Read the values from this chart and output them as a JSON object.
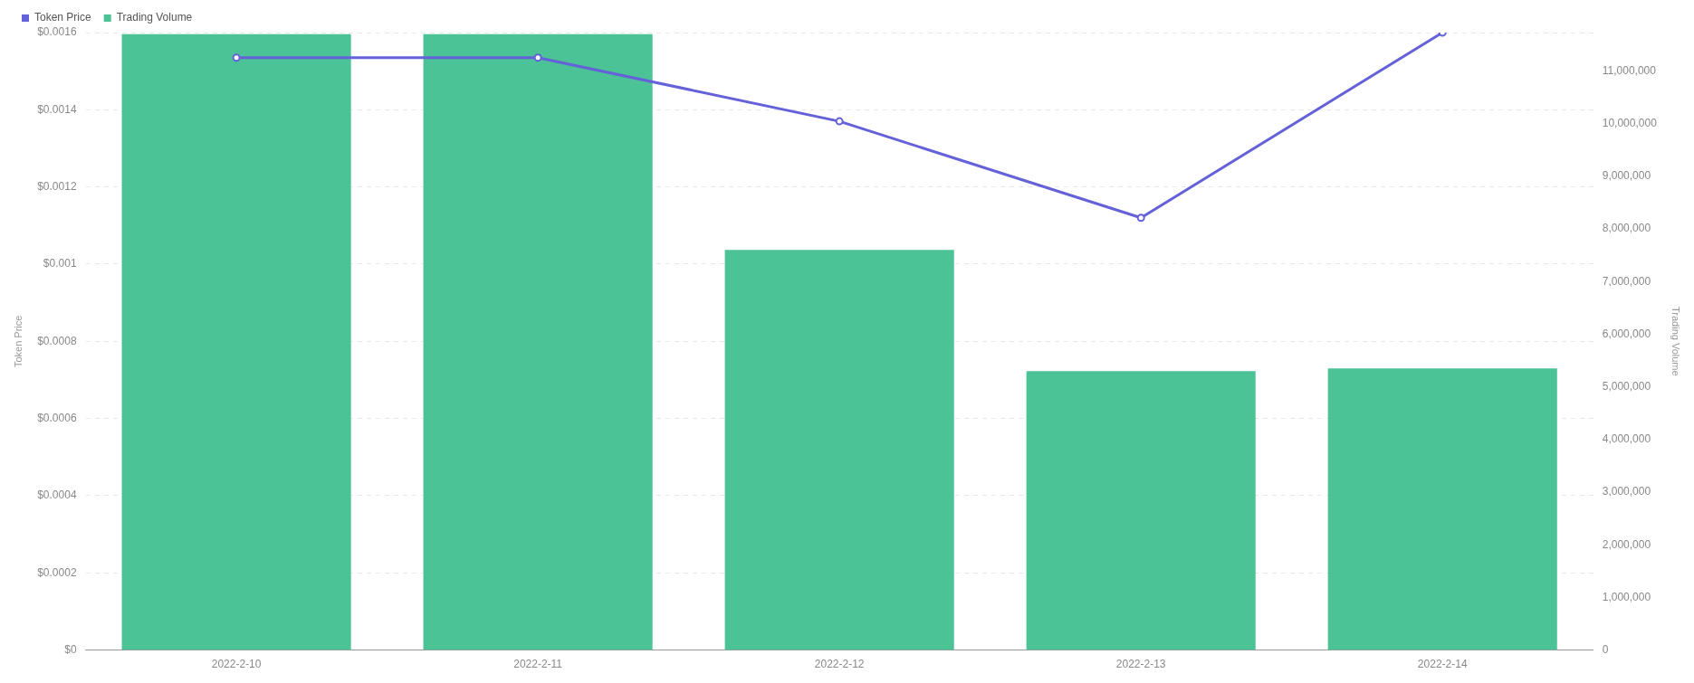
{
  "chart_data": {
    "type": "bar",
    "categories": [
      "2022-2-10",
      "2022-2-11",
      "2022-2-12",
      "2022-2-13",
      "2022-2-14"
    ],
    "series": [
      {
        "name": "Token Price",
        "type": "line",
        "color": "#6461d9",
        "values": [
          0.001535,
          0.001535,
          0.00137,
          0.00112,
          0.0016
        ]
      },
      {
        "name": "Trading Volume",
        "axis": "y2",
        "color": "#4bc397",
        "values": [
          11700000,
          11700000,
          7600000,
          5300000,
          5350000
        ]
      }
    ],
    "ylabel": "Token Price",
    "y2label": "Trading Volume",
    "ylim": [
      0,
      0.0016
    ],
    "yticks": [
      {
        "value": 0,
        "label": "$0"
      },
      {
        "value": 0.0002,
        "label": "$0.0002"
      },
      {
        "value": 0.0004,
        "label": "$0.0004"
      },
      {
        "value": 0.0006,
        "label": "$0.0006"
      },
      {
        "value": 0.0008,
        "label": "$0.0008"
      },
      {
        "value": 0.001,
        "label": "$0.001"
      },
      {
        "value": 0.0012,
        "label": "$0.0012"
      },
      {
        "value": 0.0014,
        "label": "$0.0014"
      },
      {
        "value": 0.0016,
        "label": "$0.0016"
      }
    ],
    "y2lim": [
      0,
      11730000
    ],
    "y2ticks": [
      {
        "value": 0,
        "label": "0"
      },
      {
        "value": 1000000,
        "label": "1,000,000"
      },
      {
        "value": 2000000,
        "label": "2,000,000"
      },
      {
        "value": 3000000,
        "label": "3,000,000"
      },
      {
        "value": 4000000,
        "label": "4,000,000"
      },
      {
        "value": 5000000,
        "label": "5,000,000"
      },
      {
        "value": 6000000,
        "label": "6,000,000"
      },
      {
        "value": 7000000,
        "label": "7,000,000"
      },
      {
        "value": 8000000,
        "label": "8,000,000"
      },
      {
        "value": 9000000,
        "label": "9,000,000"
      },
      {
        "value": 10000000,
        "label": "10,000,000"
      },
      {
        "value": 11000000,
        "label": "11,000,000"
      }
    ],
    "grid": "y",
    "legend": "top left",
    "marker": "circle",
    "line_style": "solid"
  }
}
